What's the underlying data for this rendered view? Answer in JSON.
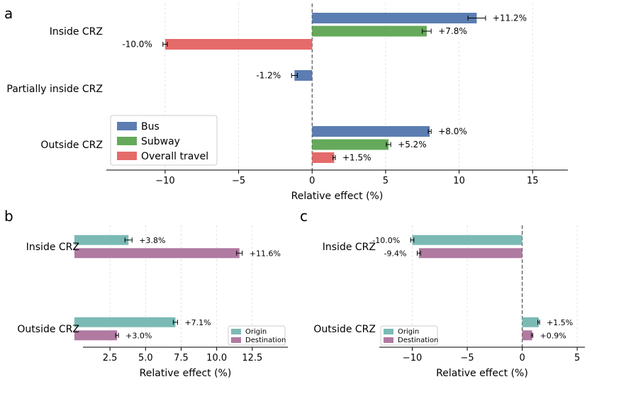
{
  "colors": {
    "bus": "#5b7db1",
    "subway": "#65a95b",
    "overall": "#e56a6a",
    "origin": "#7bbab4",
    "destination": "#b07aa1"
  },
  "chart_data": [
    {
      "panel": "a",
      "type": "bar",
      "orientation": "horizontal",
      "xlabel": "Relative effect (%)",
      "xlim": [
        -14,
        17.4
      ],
      "xticks": [
        -10,
        -5,
        0,
        5,
        10,
        15
      ],
      "xtick_labels": [
        "−10",
        "−5",
        "0",
        "5",
        "10",
        "15"
      ],
      "grid": "vertical dashed",
      "reference_line": 0,
      "legend_position": "lower-left",
      "categories": [
        "Inside CRZ",
        "Partially inside CRZ",
        "Outside CRZ"
      ],
      "series": [
        {
          "name": "Bus",
          "color_key": "bus",
          "values": [
            11.2,
            -1.2,
            8.0
          ],
          "errors": [
            0.6,
            0.2,
            0.1
          ],
          "labels": [
            "+11.2%",
            "-1.2%",
            "+8.0%"
          ]
        },
        {
          "name": "Subway",
          "color_key": "subway",
          "values": [
            7.8,
            null,
            5.2
          ],
          "errors": [
            0.3,
            null,
            0.15
          ],
          "labels": [
            "+7.8%",
            "",
            "+5.2%"
          ]
        },
        {
          "name": "Overall travel",
          "color_key": "overall",
          "values": [
            -10.0,
            null,
            1.5
          ],
          "errors": [
            0.15,
            null,
            0.08
          ],
          "labels": [
            "-10.0%",
            "",
            "+1.5%"
          ]
        }
      ]
    },
    {
      "panel": "b",
      "type": "bar",
      "orientation": "horizontal",
      "xlabel": "Relative effect (%)",
      "xlim": [
        0.6,
        15
      ],
      "xticks": [
        2.5,
        5.0,
        7.5,
        10.0,
        12.5
      ],
      "xtick_labels": [
        "2.5",
        "5.0",
        "7.5",
        "10.0",
        "12.5"
      ],
      "grid": "vertical dashed",
      "legend_position": "lower-right",
      "categories": [
        "Inside CRZ",
        "Outside CRZ"
      ],
      "series": [
        {
          "name": "Origin",
          "color_key": "origin",
          "values": [
            3.8,
            7.1
          ],
          "errors": [
            0.25,
            0.15
          ],
          "labels": [
            "+3.8%",
            "+7.1%"
          ]
        },
        {
          "name": "Destination",
          "color_key": "destination",
          "values": [
            11.6,
            3.0
          ],
          "errors": [
            0.2,
            0.1
          ],
          "labels": [
            "+11.6%",
            "+3.0%"
          ]
        }
      ]
    },
    {
      "panel": "c",
      "type": "bar",
      "orientation": "horizontal",
      "xlabel": "Relative effect (%)",
      "xlim": [
        -13,
        5.7
      ],
      "xticks": [
        -10,
        -5,
        0,
        5
      ],
      "xtick_labels": [
        "−10",
        "−5",
        "0",
        "5"
      ],
      "grid": "vertical dashed",
      "reference_line": 0,
      "legend_position": "lower-left",
      "categories": [
        "Inside CRZ",
        "Outside CRZ"
      ],
      "series": [
        {
          "name": "Origin",
          "color_key": "origin",
          "values": [
            -10.0,
            1.5
          ],
          "errors": [
            0.15,
            0.08
          ],
          "labels": [
            "-10.0%",
            "+1.5%"
          ]
        },
        {
          "name": "Destination",
          "color_key": "destination",
          "values": [
            -9.4,
            0.9
          ],
          "errors": [
            0.15,
            0.06
          ],
          "labels": [
            "-9.4%",
            "+0.9%"
          ]
        }
      ]
    }
  ]
}
